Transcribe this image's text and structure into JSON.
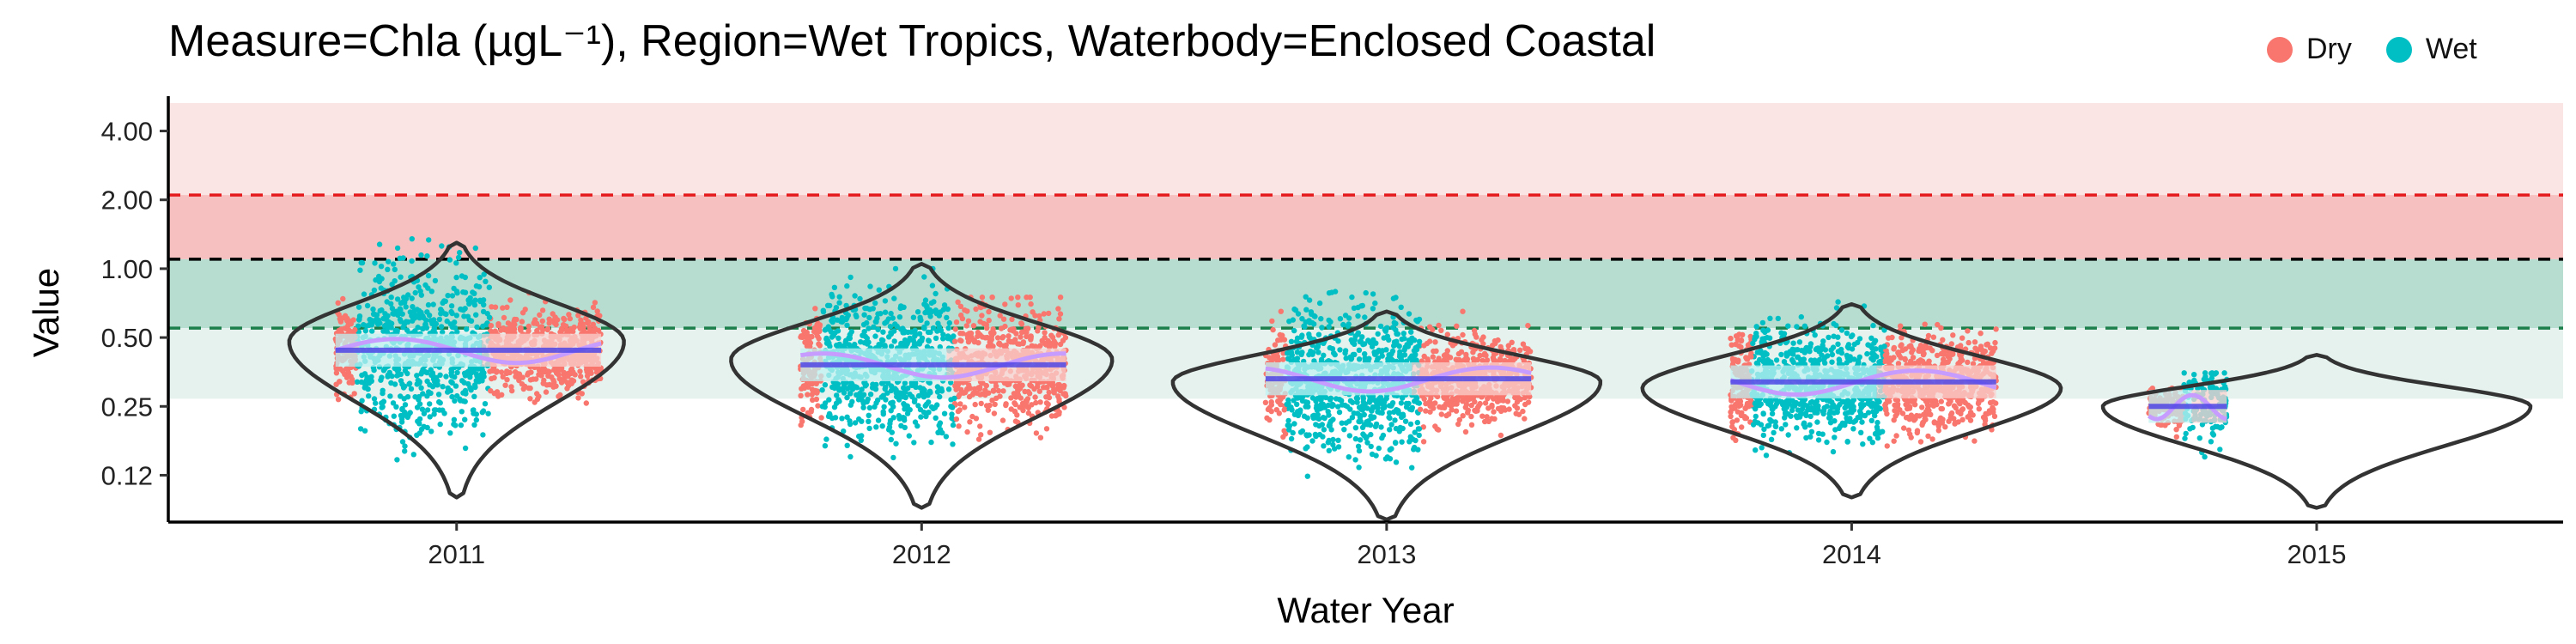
{
  "chart_data": {
    "type": "violin",
    "title": "Measure=Chla (µgL⁻¹), Region=Wet Tropics, Waterbody=Enclosed Coastal",
    "xlabel": "Water Year",
    "ylabel": "Value",
    "y_scale": "log",
    "ylim": [
      0.078,
      5.3
    ],
    "categories": [
      "2011",
      "2012",
      "2013",
      "2014",
      "2015"
    ],
    "y_ticks": [
      {
        "value": 4.0,
        "label": "4.00"
      },
      {
        "value": 2.0,
        "label": "2.00"
      },
      {
        "value": 1.0,
        "label": "1.00"
      },
      {
        "value": 0.5,
        "label": "0.50"
      },
      {
        "value": 0.25,
        "label": "0.25"
      },
      {
        "value": 0.125,
        "label": "0.12"
      }
    ],
    "legend": {
      "position": "top-right",
      "entries": [
        {
          "name": "Dry",
          "color": "#F8766D"
        },
        {
          "name": "Wet",
          "color": "#00BFC4"
        }
      ]
    },
    "guidelines": [
      {
        "value": 2.1,
        "color": "#E41A1C",
        "style": "dashed"
      },
      {
        "value": 1.1,
        "color": "#000000",
        "style": "dashed"
      },
      {
        "value": 0.55,
        "color": "#1B7F4B",
        "style": "dashed"
      }
    ],
    "bands": [
      {
        "from": 2.1,
        "to": 5.3,
        "color": "#FBE4E4"
      },
      {
        "from": 1.1,
        "to": 2.1,
        "color": "#F7C0C0"
      },
      {
        "from": 0.55,
        "to": 1.1,
        "color": "#B7DDD1"
      },
      {
        "from": 0.27,
        "to": 0.55,
        "color": "#E5F2EE"
      }
    ],
    "years": [
      {
        "label": "2011",
        "median": 0.44,
        "wet_range": [
          0.09,
          1.35
        ],
        "dry_range": [
          0.22,
          0.85
        ],
        "violin": {
          "min": 0.1,
          "max": 1.3,
          "mode": 0.48,
          "halfwidth_at_mode": 0.72
        }
      },
      {
        "label": "2012",
        "median": 0.38,
        "wet_range": [
          0.1,
          1.0
        ],
        "dry_range": [
          0.11,
          0.75
        ],
        "violin": {
          "min": 0.09,
          "max": 1.05,
          "mode": 0.4,
          "halfwidth_at_mode": 0.82
        }
      },
      {
        "label": "2013",
        "median": 0.33,
        "wet_range": [
          0.08,
          0.8
        ],
        "dry_range": [
          0.14,
          0.65
        ],
        "violin": {
          "min": 0.08,
          "max": 0.65,
          "mode": 0.32,
          "halfwidth_at_mode": 0.92
        }
      },
      {
        "label": "2014",
        "median": 0.32,
        "wet_range": [
          0.12,
          0.75
        ],
        "dry_range": [
          0.14,
          0.7
        ],
        "violin": {
          "min": 0.1,
          "max": 0.7,
          "mode": 0.3,
          "halfwidth_at_mode": 0.9
        }
      },
      {
        "label": "2015",
        "median": 0.25,
        "wet_range": [
          0.1,
          0.35
        ],
        "dry_range": [
          0.15,
          0.3
        ],
        "violin": {
          "min": 0.09,
          "max": 0.42,
          "mode": 0.25,
          "halfwidth_at_mode": 0.92
        }
      }
    ],
    "grid": false
  }
}
